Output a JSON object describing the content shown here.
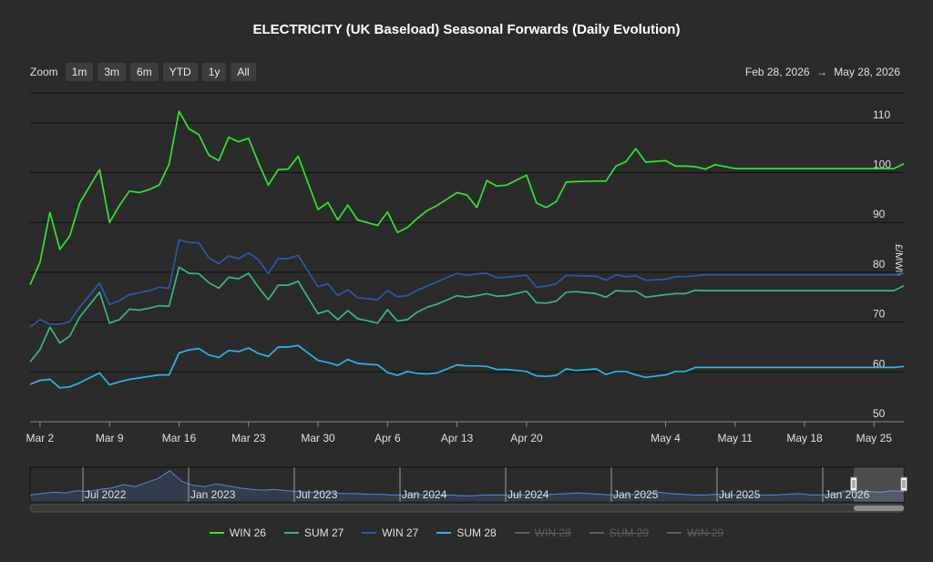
{
  "title": "ELECTRICITY (UK Baseload) Seasonal Forwards (Daily Evolution)",
  "zoom": {
    "label": "Zoom",
    "buttons": [
      "1m",
      "3m",
      "6m",
      "YTD",
      "1y",
      "All"
    ]
  },
  "range": {
    "from": "Feb 28, 2026",
    "arrow": "→",
    "to": "May 28, 2026"
  },
  "chart_data": {
    "type": "line",
    "title": "ELECTRICITY (UK Baseload) Seasonal Forwards (Daily Evolution)",
    "ylabel": "£/MWh",
    "ylim": [
      50,
      116
    ],
    "yticks": [
      50,
      60,
      70,
      80,
      90,
      100,
      110
    ],
    "x_start": "2026-03-01",
    "x_end": "2026-05-28",
    "xticks": [
      {
        "label": "Mar 2",
        "date": "2026-03-02"
      },
      {
        "label": "Mar 9",
        "date": "2026-03-09"
      },
      {
        "label": "Mar 16",
        "date": "2026-03-16"
      },
      {
        "label": "Mar 23",
        "date": "2026-03-23"
      },
      {
        "label": "Mar 30",
        "date": "2026-03-30"
      },
      {
        "label": "Apr 6",
        "date": "2026-04-06"
      },
      {
        "label": "Apr 13",
        "date": "2026-04-13"
      },
      {
        "label": "Apr 20",
        "date": "2026-04-20"
      },
      {
        "label": "May 4",
        "date": "2026-05-04"
      },
      {
        "label": "May 11",
        "date": "2026-05-11"
      },
      {
        "label": "May 18",
        "date": "2026-05-18"
      },
      {
        "label": "May 25",
        "date": "2026-05-25"
      }
    ],
    "dates": [
      "2026-03-01",
      "2026-03-02",
      "2026-03-03",
      "2026-03-04",
      "2026-03-05",
      "2026-03-06",
      "2026-03-08",
      "2026-03-09",
      "2026-03-10",
      "2026-03-11",
      "2026-03-12",
      "2026-03-13",
      "2026-03-14",
      "2026-03-15",
      "2026-03-16",
      "2026-03-17",
      "2026-03-18",
      "2026-03-19",
      "2026-03-20",
      "2026-03-21",
      "2026-03-22",
      "2026-03-23",
      "2026-03-24",
      "2026-03-25",
      "2026-03-26",
      "2026-03-27",
      "2026-03-28",
      "2026-03-30",
      "2026-03-31",
      "2026-04-01",
      "2026-04-02",
      "2026-04-03",
      "2026-04-05",
      "2026-04-06",
      "2026-04-07",
      "2026-04-08",
      "2026-04-09",
      "2026-04-10",
      "2026-04-11",
      "2026-04-13",
      "2026-04-14",
      "2026-04-15",
      "2026-04-16",
      "2026-04-17",
      "2026-04-18",
      "2026-04-20",
      "2026-04-21",
      "2026-04-22",
      "2026-04-23",
      "2026-04-24",
      "2026-04-25",
      "2026-04-27",
      "2026-04-28",
      "2026-04-29",
      "2026-04-30",
      "2026-05-01",
      "2026-05-02",
      "2026-05-04",
      "2026-05-05",
      "2026-05-06",
      "2026-05-07",
      "2026-05-08",
      "2026-05-09",
      "2026-05-11",
      "2026-05-12",
      "2026-05-13",
      "2026-05-14",
      "2026-05-15",
      "2026-05-16",
      "2026-05-18",
      "2026-05-19",
      "2026-05-20",
      "2026-05-21",
      "2026-05-22",
      "2026-05-23",
      "2026-05-25",
      "2026-05-26",
      "2026-05-27",
      "2026-05-28"
    ],
    "series": [
      {
        "name": "WIN 26",
        "color": "#2ee62e",
        "values": [
          77.5,
          82,
          92,
          84.6,
          87.3,
          93.9,
          100.6,
          90,
          93.4,
          96.3,
          96,
          96.6,
          97.5,
          101.7,
          112.3,
          108.8,
          107.6,
          103.5,
          102.4,
          107.1,
          106.2,
          106.9,
          102,
          97.5,
          100.6,
          100.7,
          103.3,
          92.6,
          94,
          90.5,
          93.5,
          90.5,
          89.4,
          92.1,
          88,
          89,
          90.8,
          92.4,
          93.4,
          96,
          95.5,
          93,
          98.4,
          97.3,
          97.5,
          99.5,
          93.9,
          93,
          94.2,
          98.1,
          98.2,
          98.3,
          98.3,
          101.3,
          102.2,
          104.8,
          102.1,
          102.4,
          101.3,
          101.3,
          101.2,
          100.7,
          101.6,
          100.8,
          100.8,
          100.8,
          100.8,
          100.8,
          100.8,
          100.8,
          100.8,
          100.8,
          100.8,
          100.8,
          100.8,
          100.8,
          100.8,
          100.8,
          101.8
        ]
      },
      {
        "name": "SUM 27",
        "color": "#3db87a",
        "values": [
          62,
          64.5,
          69,
          65.8,
          67.2,
          71,
          76,
          69.8,
          70.5,
          72.6,
          72.4,
          72.8,
          73.3,
          73.2,
          81,
          79.8,
          79.7,
          77.9,
          76.8,
          79,
          78.7,
          79.8,
          77,
          74.5,
          77.4,
          77.4,
          78.2,
          71.7,
          72.3,
          70.5,
          72.3,
          70.7,
          69.8,
          72.5,
          70.2,
          70.5,
          72,
          73,
          73.6,
          75.3,
          75,
          75.3,
          75.7,
          75.2,
          75.3,
          76.2,
          73.9,
          73.8,
          74.2,
          76,
          76.1,
          75.7,
          75,
          76.3,
          76.2,
          76.2,
          75,
          75.5,
          75.7,
          75.7,
          76.4,
          76.3,
          76.3,
          76.3,
          76.3,
          76.3,
          76.3,
          76.3,
          76.3,
          76.3,
          76.3,
          76.3,
          76.3,
          76.3,
          76.3,
          76.3,
          76.3,
          76.3,
          77.3
        ]
      },
      {
        "name": "WIN 27",
        "color": "#2a5aa8",
        "values": [
          69,
          70.5,
          69.6,
          69.6,
          70.1,
          73,
          77.8,
          73.5,
          74.3,
          75.5,
          75.9,
          76.3,
          77,
          76.8,
          86.5,
          86,
          85.9,
          82.9,
          81.7,
          83.3,
          82.7,
          83.9,
          82.5,
          79.7,
          82.8,
          82.7,
          83.4,
          77.1,
          77.7,
          75.3,
          76.5,
          74.9,
          74.5,
          76.3,
          75.1,
          75.3,
          76.4,
          77.2,
          78.1,
          79.8,
          79.4,
          79.7,
          79.8,
          78.9,
          79,
          79.4,
          77,
          77.2,
          77.7,
          79.4,
          79.3,
          79.2,
          78.4,
          79.5,
          79.1,
          79.3,
          78.4,
          78.6,
          79.1,
          79.1,
          79.3,
          79.5,
          79.5,
          79.5,
          79.5,
          79.5,
          79.5,
          79.5,
          79.5,
          79.5,
          79.5,
          79.5,
          79.5,
          79.5,
          79.5,
          79.5,
          79.5,
          79.5,
          79.8
        ]
      },
      {
        "name": "SUM 28",
        "color": "#2bb5e8",
        "values": [
          57.5,
          58.3,
          58.5,
          56.8,
          57,
          57.8,
          59.8,
          57.4,
          58,
          58.5,
          58.8,
          59.1,
          59.4,
          59.4,
          63.8,
          64.4,
          64.7,
          63.4,
          62.9,
          64.3,
          64.1,
          64.8,
          63.7,
          63.1,
          65,
          65,
          65.3,
          62.3,
          61.9,
          61.3,
          62.5,
          61.7,
          61.4,
          59.9,
          59.3,
          60.1,
          59.7,
          59.6,
          59.8,
          61.4,
          61.2,
          61.2,
          61.1,
          60.5,
          60.5,
          60.1,
          59.2,
          59.1,
          59.3,
          60.6,
          60.3,
          60.6,
          59.5,
          60.1,
          60.1,
          59.4,
          58.9,
          59.4,
          60.1,
          60.1,
          60.9,
          60.9,
          60.9,
          60.9,
          60.9,
          60.9,
          60.9,
          60.9,
          60.9,
          60.9,
          60.9,
          60.9,
          60.9,
          60.9,
          60.9,
          60.9,
          60.9,
          60.9,
          61.1
        ]
      }
    ],
    "hidden_series": [
      "WIN 28",
      "SUM 29",
      "WIN 29"
    ],
    "legend": "bottom",
    "grid": true,
    "navigator": {
      "labels": [
        "Jul 2022",
        "Jan 2023",
        "Jul 2023",
        "Jan 2024",
        "Jul 2024",
        "Jan 2025",
        "Jul 2025",
        "Jan 2026"
      ],
      "values": [
        60,
        62,
        64,
        63,
        66,
        65,
        68,
        70,
        75,
        72,
        78,
        84,
        95,
        80,
        74,
        72,
        76,
        73,
        70,
        68,
        67,
        68,
        66,
        65,
        64,
        63,
        63,
        62,
        62,
        61,
        61,
        60,
        60,
        61,
        60,
        60,
        60,
        59,
        59,
        60,
        60,
        60,
        60,
        61,
        60,
        61,
        62,
        63,
        62,
        61,
        60,
        60,
        61,
        62,
        64,
        62,
        61,
        60,
        60,
        61,
        60,
        60,
        59,
        60,
        60,
        61,
        62,
        60,
        60,
        61,
        66,
        63,
        65,
        64,
        66,
        65
      ]
    }
  },
  "legend_items": [
    {
      "label": "WIN 26",
      "color": "#2ee62e",
      "visible": true
    },
    {
      "label": "SUM 27",
      "color": "#3db87a",
      "visible": true
    },
    {
      "label": "WIN 27",
      "color": "#2a5aa8",
      "visible": true
    },
    {
      "label": "SUM 28",
      "color": "#2bb5e8",
      "visible": true
    },
    {
      "label": "WIN 28",
      "color": "#5e5e5e",
      "visible": false
    },
    {
      "label": "SUM 29",
      "color": "#5e5e5e",
      "visible": false
    },
    {
      "label": "WIN 29",
      "color": "#5e5e5e",
      "visible": false
    }
  ]
}
